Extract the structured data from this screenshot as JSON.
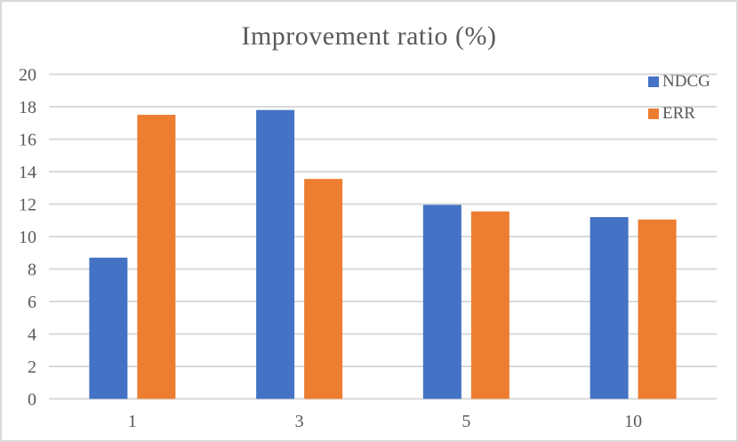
{
  "title": "Improvement ratio (%)",
  "colors": {
    "ndcg_blue": "#4472C4",
    "err_orange": "#ED7D31",
    "gridline": "#D9D9D9",
    "axis_text": "#595959",
    "title_text": "#595959",
    "border": "#D9D9D9",
    "background": "#FFFFFF"
  },
  "legend": {
    "position": "top-right",
    "items": [
      {
        "label": "NDCG",
        "swatch_color": "#4472C4",
        "swatch_icon": "square"
      },
      {
        "label": "ERR",
        "swatch_color": "#ED7D31",
        "swatch_icon": "square"
      }
    ]
  },
  "chart_data": {
    "type": "bar",
    "title": "Improvement ratio (%)",
    "categories": [
      "1",
      "3",
      "5",
      "10"
    ],
    "series": [
      {
        "name": "NDCG",
        "color": "#4472C4",
        "values": [
          8.7,
          17.8,
          11.95,
          11.2
        ]
      },
      {
        "name": "ERR",
        "color": "#ED7D31",
        "values": [
          17.5,
          13.55,
          11.55,
          11.05
        ]
      }
    ],
    "xlabel": "",
    "ylabel": "",
    "ylim": [
      0,
      20
    ],
    "ytick_step": 2,
    "ytick_labels": [
      "0",
      "2",
      "4",
      "6",
      "8",
      "10",
      "12",
      "14",
      "16",
      "18",
      "20"
    ],
    "grid": true,
    "gridline_orientation": "horizontal",
    "legend_position": "top-right"
  }
}
